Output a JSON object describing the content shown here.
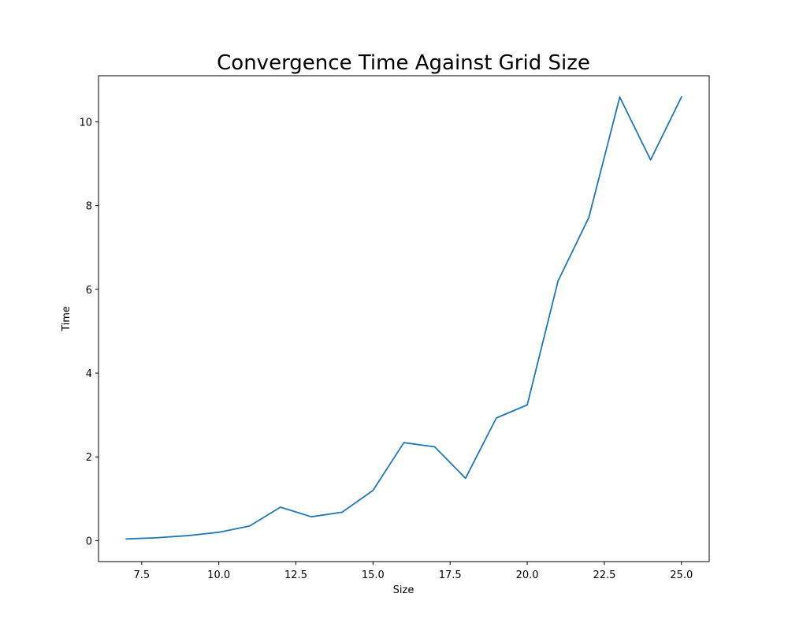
{
  "chart_data": {
    "type": "line",
    "title": "Convergence Time Against Grid Size",
    "xlabel": "Size",
    "ylabel": "Time",
    "xlim": [
      6.1,
      25.9
    ],
    "ylim": [
      -0.5,
      11.1
    ],
    "xticks": [
      7.5,
      10.0,
      12.5,
      15.0,
      17.5,
      20.0,
      22.5,
      25.0
    ],
    "xtick_labels": [
      "7.5",
      "10.0",
      "12.5",
      "15.0",
      "17.5",
      "20.0",
      "22.5",
      "25.0"
    ],
    "yticks": [
      0,
      2,
      4,
      6,
      8,
      10
    ],
    "ytick_labels": [
      "0",
      "2",
      "4",
      "6",
      "8",
      "10"
    ],
    "grid": false,
    "series": [
      {
        "color": "#1f77b4",
        "x": [
          7,
          8,
          9,
          10,
          11,
          12,
          13,
          14,
          15,
          16,
          17,
          18,
          19,
          20,
          21,
          22,
          23,
          24,
          25
        ],
        "y": [
          0.04,
          0.07,
          0.12,
          0.2,
          0.35,
          0.8,
          0.57,
          0.68,
          1.2,
          2.34,
          2.24,
          1.49,
          2.93,
          3.24,
          6.2,
          7.72,
          10.59,
          9.09,
          10.59
        ]
      }
    ]
  }
}
